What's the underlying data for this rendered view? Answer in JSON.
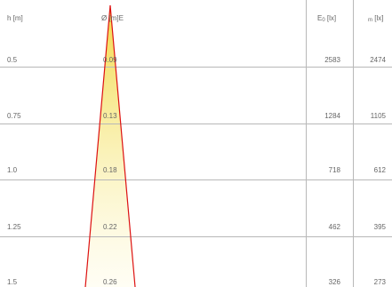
{
  "headers": {
    "height": "h [m]",
    "diameter": "Ø [m]",
    "e": "E",
    "e0_main": "E",
    "e0_sub": "0",
    "e0_unit": " [lx]",
    "em_sub": "m",
    "em_unit": " [lx]"
  },
  "rows": [
    {
      "h": "0.5",
      "diameter": "0.09",
      "e0": "2583",
      "em": "2474"
    },
    {
      "h": "0.75",
      "diameter": "0.13",
      "e0": "1284",
      "em": "1105"
    },
    {
      "h": "1.0",
      "diameter": "0.18",
      "e0": "718",
      "em": "612"
    },
    {
      "h": "1.25",
      "diameter": "0.22",
      "e0": "462",
      "em": "395"
    },
    {
      "h": "1.5",
      "diameter": "0.26",
      "e0": "326",
      "em": "273"
    }
  ],
  "colors": {
    "beam_outline": "#dd1111",
    "beam_glow": "#fff9b0",
    "grid_line": "#b8b8b8",
    "text": "#666666"
  }
}
